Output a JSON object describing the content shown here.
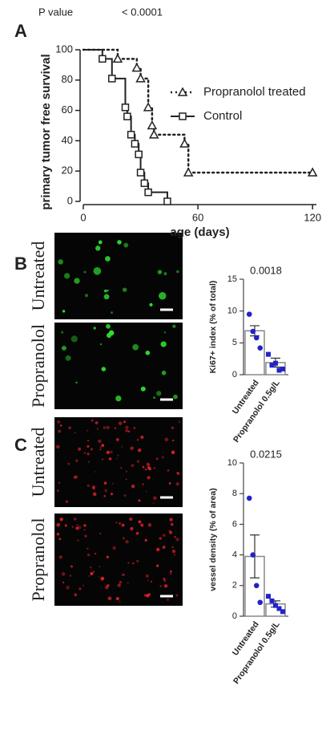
{
  "panels": [
    "A",
    "B",
    "C"
  ],
  "image_labels": [
    "Untreated",
    "Propranolol",
    "Untreated",
    "Propranolol"
  ],
  "chart_data": [
    {
      "type": "line",
      "step": "post",
      "p_value_label": "P value",
      "p_value": "< 0.0001",
      "y_label": "primary tumor free survival",
      "x_label": "age (days)",
      "xlim": [
        0,
        122
      ],
      "xticks": [
        0,
        60,
        120
      ],
      "ylim": [
        0,
        100
      ],
      "yticks": [
        0,
        20,
        40,
        60,
        80,
        100
      ],
      "series": [
        {
          "name": "Propranolol treated",
          "color": "#222222",
          "line_style": "dotted",
          "marker": "triangle",
          "x": [
            0,
            18,
            28,
            30,
            34,
            36,
            37,
            53,
            55,
            120
          ],
          "values": [
            100,
            94,
            88,
            81,
            62,
            50,
            44,
            38,
            19,
            19
          ]
        },
        {
          "name": "Control",
          "color": "#222222",
          "line_style": "solid",
          "marker": "square",
          "x": [
            0,
            10,
            15,
            22,
            23,
            25,
            27,
            29,
            30,
            32,
            34,
            44
          ],
          "values": [
            100,
            94,
            81,
            62,
            56,
            44,
            38,
            31,
            19,
            12,
            6,
            0
          ]
        }
      ]
    },
    {
      "type": "bar",
      "annotation": "0.0018",
      "y_label": "Ki67+ index (% of total)",
      "categories": [
        "Untreated",
        "Propranolol 0.5g/L"
      ],
      "values": [
        6.9,
        1.9
      ],
      "errors": [
        0.8,
        0.7
      ],
      "points": [
        [
          9.5,
          6.8,
          5.8,
          4.2
        ],
        [
          3.2,
          1.5,
          1.8,
          0.7,
          0.9
        ]
      ],
      "point_color": "#2222cc",
      "ylim": [
        0,
        15
      ],
      "yticks": [
        0,
        5,
        10,
        15
      ]
    },
    {
      "type": "bar",
      "annotation": "0.0215",
      "y_label": "vessel density (% of area)",
      "categories": [
        "Untreated",
        "Propranolol 0.5g/L"
      ],
      "values": [
        3.9,
        0.8
      ],
      "errors": [
        1.4,
        0.2
      ],
      "points": [
        [
          7.7,
          4.0,
          2.0,
          0.9
        ],
        [
          1.3,
          1.0,
          0.7,
          0.5,
          0.3
        ]
      ],
      "point_color": "#2222cc",
      "ylim": [
        0,
        10
      ],
      "yticks": [
        0,
        2,
        4,
        6,
        8,
        10
      ]
    }
  ]
}
